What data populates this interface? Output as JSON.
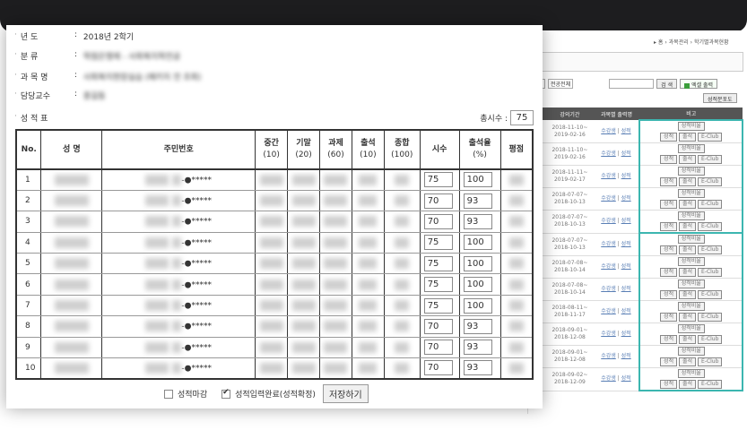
{
  "info": {
    "year_label": "년 도",
    "year_value": "2018년 2학기",
    "category_label": "분 류",
    "category_value": "학점은행제 - 사회복지학전공",
    "course_label": "과 목 명",
    "course_value": "사회복지현장실습 (패키지 전 조회)",
    "prof_label": "담당교수",
    "prof_value": "홍길동",
    "grade_label": "성 적 표"
  },
  "count": {
    "label": "총시수 :",
    "value": "75"
  },
  "table": {
    "headers": {
      "no": "No.",
      "name": "성 명",
      "id": "주민번호",
      "mid": "중간",
      "mid_sub": "(10)",
      "final": "기말",
      "final_sub": "(20)",
      "task": "과제",
      "task_sub": "(60)",
      "att": "출석",
      "att_sub": "(10)",
      "total": "종합",
      "total_sub": "(100)",
      "hours": "시수",
      "rate": "출석율",
      "rate_sub": "(%)",
      "grade": "평점"
    },
    "rows": [
      {
        "no": "1",
        "id_mask": "-●*****",
        "hours": "75",
        "rate": "100"
      },
      {
        "no": "2",
        "id_mask": "-●*****",
        "hours": "70",
        "rate": "93"
      },
      {
        "no": "3",
        "id_mask": "-●*****",
        "hours": "70",
        "rate": "93"
      },
      {
        "no": "4",
        "id_mask": "-●*****",
        "hours": "75",
        "rate": "100"
      },
      {
        "no": "5",
        "id_mask": "-●*****",
        "hours": "75",
        "rate": "100"
      },
      {
        "no": "6",
        "id_mask": "-●*****",
        "hours": "75",
        "rate": "100"
      },
      {
        "no": "7",
        "id_mask": "-●*****",
        "hours": "75",
        "rate": "100"
      },
      {
        "no": "8",
        "id_mask": "-●*****",
        "hours": "70",
        "rate": "93"
      },
      {
        "no": "9",
        "id_mask": "-●*****",
        "hours": "70",
        "rate": "93"
      },
      {
        "no": "10",
        "id_mask": "-●*****",
        "hours": "70",
        "rate": "93"
      }
    ]
  },
  "footer": {
    "close_label": "성적마감",
    "close_checked": false,
    "complete_label": "성적입력완료(성적확정)",
    "complete_checked": true,
    "save_label": "저장하기"
  },
  "background": {
    "breadcrumb": "▸ 홈 › 과목관리 › 학기별과목현황",
    "select1": "▾",
    "select2": "전공전체",
    "search_btn": "검 색",
    "excel_btn": "엑셀 출력",
    "register_btn": "성적분포도",
    "th_period": "강의기간",
    "th_links": "과목별 출력명",
    "th_note": "비고",
    "rows": [
      {
        "start": "2018-11-10~",
        "end": "2019-02-16",
        "link1": "수강생",
        "link2": "성적"
      },
      {
        "start": "2018-11-10~",
        "end": "2019-02-16",
        "link1": "수강생",
        "link2": "성적"
      },
      {
        "start": "2018-11-11~",
        "end": "2019-02-17",
        "link1": "수강생",
        "link2": "성적"
      },
      {
        "start": "2018-07-07~",
        "end": "2018-10-13",
        "link1": "수강생",
        "link2": "성적"
      },
      {
        "start": "2018-07-07~",
        "end": "2018-10-13",
        "link1": "수강생",
        "link2": "성적"
      },
      {
        "start": "2018-07-07~",
        "end": "2018-10-13",
        "link1": "수강생",
        "link2": "성적"
      },
      {
        "start": "2018-07-08~",
        "end": "2018-10-14",
        "link1": "수강생",
        "link2": "성적"
      },
      {
        "start": "2018-07-08~",
        "end": "2018-10-14",
        "link1": "수강생",
        "link2": "성적"
      },
      {
        "start": "2018-08-11~",
        "end": "2018-11-17",
        "link1": "수강생",
        "link2": "성적"
      },
      {
        "start": "2018-09-01~",
        "end": "2018-12-08",
        "link1": "수강생",
        "link2": "성적"
      },
      {
        "start": "2018-09-01~",
        "end": "2018-12-08",
        "link1": "수강생",
        "link2": "성적"
      },
      {
        "start": "2018-09-02~",
        "end": "2018-12-09",
        "link1": "수강생",
        "link2": "성적"
      }
    ],
    "act_grade_input": "성적비율",
    "act_grade": "성적",
    "act_att": "출석",
    "act_club": "E-Club"
  },
  "colors": {
    "teal": "#3cb6b0",
    "topbar": "#1d1d1f"
  }
}
